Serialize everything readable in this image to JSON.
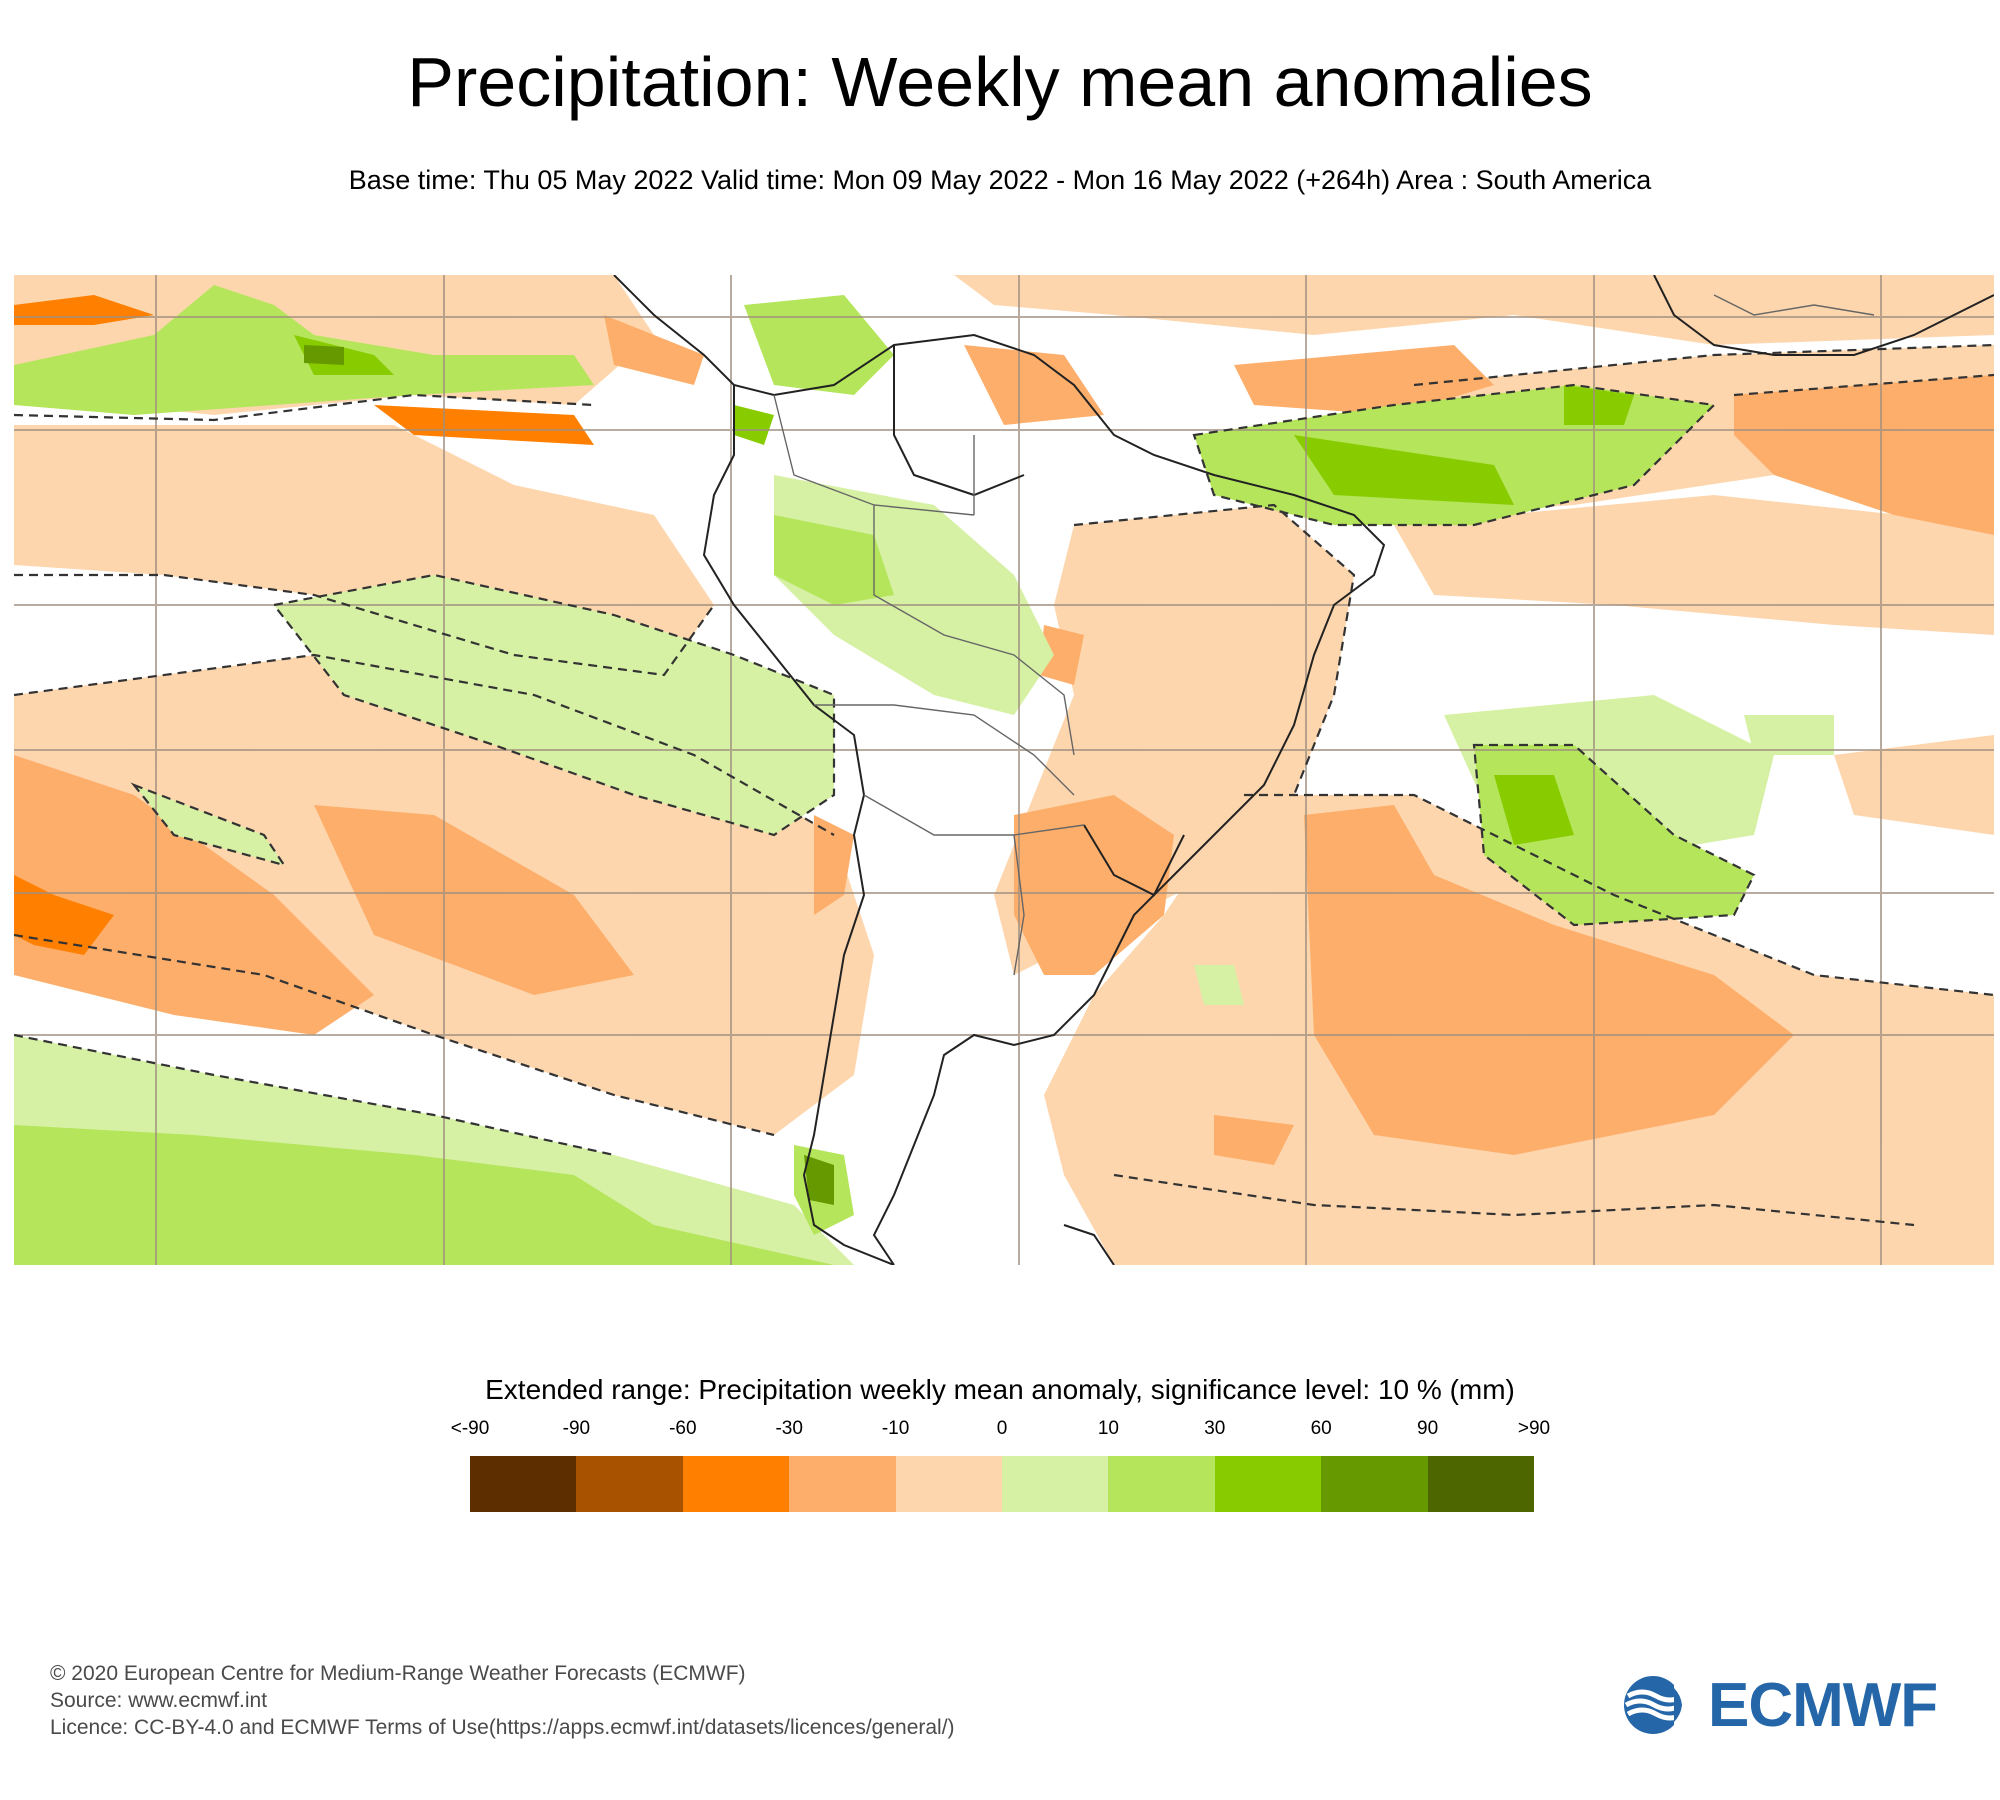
{
  "header": {
    "title": "Precipitation: Weekly mean anomalies",
    "subtitle": "Base time: Thu 05 May 2022 Valid time: Mon 09 May 2022 - Mon 16 May 2022 (+264h) Area : South America"
  },
  "legend": {
    "title": "Extended range: Precipitation weekly mean anomaly, significance level: 10 % (mm)",
    "ticks": [
      "<-90",
      "-90",
      "-60",
      "-30",
      "-10",
      "0",
      "10",
      "30",
      "60",
      "90",
      ">90"
    ],
    "colors": [
      "#5c2e00",
      "#a85200",
      "#ff7f00",
      "#fdae6b",
      "#fdd6ad",
      "#d6f0a4",
      "#b4e55a",
      "#88cc00",
      "#669900",
      "#4d6600"
    ]
  },
  "map": {
    "colors": {
      "ocean_bg": "#ffffff",
      "dry_light": "#fdd6ad",
      "dry_med": "#fdae6b",
      "dry_strong": "#ff7f00",
      "wet_light": "#d6f0a4",
      "wet_med": "#b4e55a",
      "wet_strong": "#88cc00",
      "wet_very": "#669900",
      "grid": "#a09080",
      "coast": "#222222"
    }
  },
  "footer": {
    "copyright": "© 2020 European Centre for Medium-Range Weather Forecasts (ECMWF)",
    "source": "Source: www.ecmwf.int",
    "licence": "Licence: CC-BY-4.0 and ECMWF Terms of Use(https://apps.ecmwf.int/datasets/licences/general/)"
  },
  "logo": {
    "text": "ECMWF",
    "color": "#2466a8"
  }
}
